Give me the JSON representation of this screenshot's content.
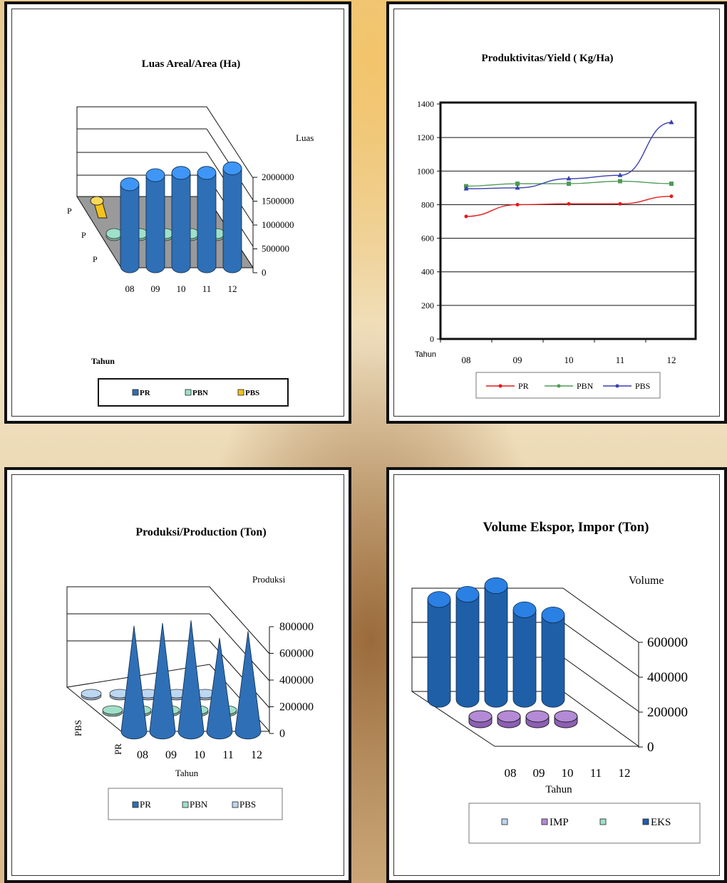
{
  "colors": {
    "pr": "#2f6fb6",
    "pbn": "#9fe0c8",
    "pbs": "#f4c21a",
    "imp": "#b48ad6",
    "eks": "#1f5fa8",
    "line_pr": "#e31a1c",
    "line_pbn": "#4f9a55",
    "line_pbs": "#3a3fb0"
  },
  "chart_data": [
    {
      "type": "bar",
      "title": "Luas Areal/Area (Ha)",
      "zlabel": "Luas",
      "xlabel": "Tahun",
      "categories": [
        "08",
        "09",
        "10",
        "11",
        "12"
      ],
      "yticks": [
        "2000000",
        "1500000",
        "1000000",
        "500000",
        "0"
      ],
      "depth_labels": [
        "P",
        "P",
        "P"
      ],
      "series": [
        {
          "name": "PR",
          "values": [
            1800000,
            2000000,
            2050000,
            2050000,
            2150000
          ]
        },
        {
          "name": "PBN",
          "values": [
            60000,
            60000,
            60000,
            60000,
            60000
          ]
        },
        {
          "name": "PBS",
          "values": [
            100000,
            0,
            0,
            0,
            0
          ]
        }
      ],
      "ylim": [
        0,
        2000000
      ],
      "legend": [
        "PR",
        "PBN",
        "PBS"
      ]
    },
    {
      "type": "line",
      "title": "Produktivitas/Yield ( Kg/Ha)",
      "xlabel": "Tahun",
      "categories": [
        "08",
        "09",
        "10",
        "11",
        "12"
      ],
      "yticks": [
        "1400",
        "1200",
        "1000",
        "800",
        "600",
        "400",
        "200",
        "0"
      ],
      "ylim": [
        0,
        1400
      ],
      "series": [
        {
          "name": "PR",
          "values": [
            730,
            800,
            805,
            805,
            850
          ]
        },
        {
          "name": "PBN",
          "values": [
            910,
            925,
            925,
            940,
            925
          ]
        },
        {
          "name": "PBS",
          "values": [
            895,
            900,
            955,
            975,
            1290
          ]
        }
      ],
      "legend": [
        "PR",
        "PBN",
        "PBS"
      ]
    },
    {
      "type": "bar",
      "title": "Produksi/Production (Ton)",
      "zlabel": "Produksi",
      "xlabel": "Tahun",
      "categories": [
        "08",
        "09",
        "10",
        "11",
        "12"
      ],
      "yticks": [
        "800000",
        "600000",
        "400000",
        "200000",
        "0"
      ],
      "depth_labels": [
        "PBS",
        "PR"
      ],
      "ylim": [
        0,
        800000
      ],
      "series": [
        {
          "name": "PR",
          "values": [
            780000,
            800000,
            820000,
            690000,
            740000
          ]
        },
        {
          "name": "PBN",
          "values": [
            25000,
            25000,
            25000,
            25000,
            25000
          ]
        },
        {
          "name": "PBS",
          "values": [
            30000,
            30000,
            30000,
            30000,
            30000
          ]
        }
      ],
      "legend": [
        "PR",
        "PBN",
        "PBS"
      ]
    },
    {
      "type": "bar",
      "title": "Volume Ekspor,  Impor (Ton)",
      "zlabel": "Volume",
      "xlabel": "Tahun",
      "categories": [
        "08",
        "09",
        "10",
        "11",
        "12"
      ],
      "yticks": [
        "600000",
        "400000",
        "200000",
        "0"
      ],
      "ylim": [
        0,
        700000
      ],
      "series": [
        {
          "name": "EKS",
          "values": [
            580000,
            610000,
            660000,
            520000,
            490000
          ]
        },
        {
          "name": "IMP",
          "values": [
            30000,
            30000,
            30000,
            30000,
            0
          ]
        }
      ],
      "legend": [
        "",
        "IMP",
        "",
        "EKS"
      ]
    }
  ]
}
